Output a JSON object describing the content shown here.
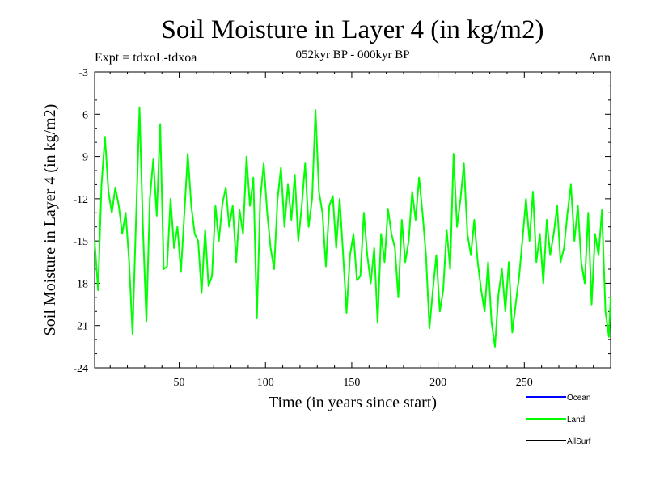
{
  "chart_data": {
    "type": "line",
    "title": "Soil Moisture in Layer 4 (in kg/m2)",
    "subtitle": "052kyr BP - 000kyr BP",
    "left_label": "Expt = tdxoL-tdxoa",
    "right_label": "Ann",
    "xlabel": "Time (in years since start)",
    "ylabel": "Soil Moisture in Layer 4 (in kg/m2)",
    "xlim": [
      1,
      300
    ],
    "ylim": [
      -24,
      -3
    ],
    "xticks": [
      50,
      100,
      150,
      200,
      250
    ],
    "yticks": [
      -3,
      -6,
      -9,
      -12,
      -15,
      -18,
      -21,
      -24
    ],
    "grid": false,
    "legend_position": "bottom-right",
    "series": [
      {
        "name": "Land",
        "color": "#00ff00",
        "x": [
          1,
          3,
          5,
          7,
          9,
          11,
          13,
          15,
          17,
          19,
          21,
          23,
          25,
          27,
          29,
          31,
          33,
          35,
          37,
          39,
          41,
          43,
          45,
          47,
          49,
          51,
          53,
          55,
          57,
          59,
          61,
          63,
          65,
          67,
          69,
          71,
          73,
          75,
          77,
          79,
          81,
          83,
          85,
          87,
          89,
          91,
          93,
          95,
          97,
          99,
          101,
          103,
          105,
          107,
          109,
          111,
          113,
          115,
          117,
          119,
          121,
          123,
          125,
          127,
          129,
          131,
          133,
          135,
          137,
          139,
          141,
          143,
          145,
          147,
          149,
          151,
          153,
          155,
          157,
          159,
          161,
          163,
          165,
          167,
          169,
          171,
          173,
          175,
          177,
          179,
          181,
          183,
          185,
          187,
          189,
          191,
          193,
          195,
          197,
          199,
          201,
          203,
          205,
          207,
          209,
          211,
          213,
          215,
          217,
          219,
          221,
          223,
          225,
          227,
          229,
          231,
          233,
          235,
          237,
          239,
          241,
          243,
          245,
          247,
          249,
          251,
          253,
          255,
          257,
          259,
          261,
          263,
          265,
          267,
          269,
          271,
          273,
          275,
          277,
          279,
          281,
          283,
          285,
          287,
          289,
          291,
          293,
          295,
          297,
          299,
          300
        ],
        "values": [
          -15.0,
          -18.5,
          -11.0,
          -7.6,
          -11.5,
          -13.0,
          -11.2,
          -12.5,
          -14.5,
          -13.0,
          -16.5,
          -21.6,
          -13.5,
          -5.5,
          -14.0,
          -20.7,
          -12.0,
          -9.2,
          -13.2,
          -6.7,
          -17.0,
          -16.8,
          -12.0,
          -15.5,
          -14.0,
          -17.2,
          -13.0,
          -8.8,
          -12.5,
          -14.5,
          -15.0,
          -18.7,
          -14.2,
          -18.2,
          -17.5,
          -12.5,
          -15.0,
          -12.4,
          -11.2,
          -14.0,
          -12.5,
          -16.5,
          -12.8,
          -14.5,
          -9.0,
          -12.5,
          -10.5,
          -20.5,
          -12.0,
          -9.5,
          -13.0,
          -15.5,
          -17.0,
          -12.0,
          -9.8,
          -14.0,
          -11.0,
          -13.5,
          -10.3,
          -15.0,
          -12.5,
          -9.5,
          -14.0,
          -12.0,
          -5.7,
          -11.5,
          -13.0,
          -16.8,
          -12.5,
          -11.8,
          -15.5,
          -12.0,
          -16.0,
          -20.1,
          -16.0,
          -14.5,
          -17.8,
          -17.5,
          -13.0,
          -16.0,
          -18.0,
          -15.5,
          -20.8,
          -14.5,
          -16.5,
          -12.7,
          -14.5,
          -15.5,
          -19.0,
          -13.5,
          -16.5,
          -15.0,
          -11.5,
          -13.5,
          -10.5,
          -13.0,
          -16.0,
          -21.2,
          -18.5,
          -16.0,
          -20.0,
          -18.5,
          -14.2,
          -17.0,
          -8.8,
          -14.0,
          -12.0,
          -9.5,
          -14.5,
          -16.0,
          -13.5,
          -16.5,
          -18.5,
          -20.0,
          -16.5,
          -20.8,
          -22.5,
          -18.8,
          -17.0,
          -20.0,
          -16.5,
          -21.5,
          -19.5,
          -17.5,
          -14.8,
          -12.0,
          -15.0,
          -11.5,
          -16.5,
          -14.5,
          -18.0,
          -13.5,
          -16.0,
          -14.5,
          -12.5,
          -16.5,
          -15.5,
          -13.0,
          -11.0,
          -15.0,
          -12.5,
          -16.5,
          -18.0,
          -13.0,
          -19.5,
          -14.5,
          -16.0,
          -12.8,
          -20.0,
          -21.8,
          -19.0
        ]
      },
      {
        "name": "Ocean",
        "color": "#0000ff"
      },
      {
        "name": "AllSurf",
        "color": "#000000"
      }
    ]
  }
}
